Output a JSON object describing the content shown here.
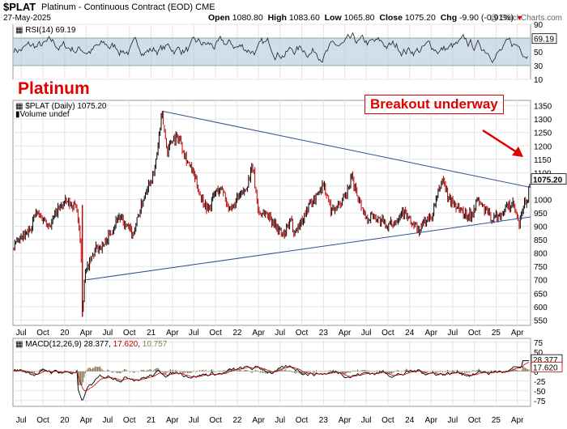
{
  "header": {
    "symbol": "$PLAT",
    "name": "Platinum - Continuous Contract (EOD)",
    "exchange": "CME",
    "date": "27-May-2025",
    "watermark": "@ StockCharts.com",
    "open_label": "Open",
    "open": "1080.80",
    "high_label": "High",
    "high": "1083.60",
    "low_label": "Low",
    "low": "1065.80",
    "close_label": "Close",
    "close": "1075.20",
    "chg_label": "Chg",
    "chg": "-9.90 (-0.91%)"
  },
  "annotations": {
    "title": "Platinum",
    "breakout": "Breakout underway"
  },
  "colors": {
    "accent": "#e00000",
    "trendline": "#2f4f8f",
    "rsi_band": "#a9c1d9",
    "price": "#000000",
    "macd_hist": "#8b7d5a"
  },
  "chart_data": [
    {
      "type": "line",
      "panel": "rsi",
      "label": "RSI(14)",
      "current": "69.19",
      "ylim": [
        10,
        90
      ],
      "ticks": [
        90,
        70,
        50,
        30,
        10
      ],
      "band": [
        30,
        70
      ]
    },
    {
      "type": "candlestick",
      "panel": "price",
      "label": "$PLAT (Daily)",
      "current": "1075.20",
      "volume_label": "Volume undef",
      "ylim": [
        530,
        1370
      ],
      "ticks": [
        1350,
        1300,
        1250,
        1200,
        1150,
        1100,
        1050,
        1000,
        950,
        900,
        850,
        800,
        750,
        700,
        650,
        600,
        550
      ],
      "x_labels": [
        "Jul",
        "Oct",
        "20",
        "Apr",
        "Jul",
        "Oct",
        "21",
        "Apr",
        "Jul",
        "Oct",
        "22",
        "Apr",
        "Jul",
        "Oct",
        "23",
        "Apr",
        "Jul",
        "Oct",
        "24",
        "Apr",
        "Jul",
        "Oct",
        "25",
        "Apr"
      ],
      "series": [
        {
          "x": [
            "2019-05-27",
            "2019-07-01",
            "2019-08-01",
            "2019-09-01",
            "2019-10-01",
            "2019-11-01",
            "2019-12-01",
            "2020-01-01",
            "2020-02-01",
            "2020-02-20",
            "2020-03-10",
            "2020-03-16",
            "2020-03-25",
            "2020-04-15",
            "2020-05-15",
            "2020-06-15",
            "2020-07-15",
            "2020-08-15",
            "2020-09-15",
            "2020-10-15",
            "2020-11-15",
            "2020-12-15",
            "2021-01-15",
            "2021-02-16",
            "2021-03-10",
            "2021-04-01",
            "2021-05-01",
            "2021-06-01",
            "2021-07-01",
            "2021-08-01",
            "2021-09-01",
            "2021-10-01",
            "2021-11-01",
            "2021-12-01",
            "2022-01-01",
            "2022-02-01",
            "2022-03-08",
            "2022-04-01",
            "2022-05-01",
            "2022-06-01",
            "2022-07-15",
            "2022-08-15",
            "2022-09-01",
            "2022-10-01",
            "2022-11-01",
            "2022-12-01",
            "2023-01-01",
            "2023-02-01",
            "2023-03-01",
            "2023-04-01",
            "2023-05-01",
            "2023-06-01",
            "2023-07-01",
            "2023-08-01",
            "2023-09-01",
            "2023-10-01",
            "2023-11-01",
            "2023-12-01",
            "2024-01-01",
            "2024-02-15",
            "2024-03-01",
            "2024-04-01",
            "2024-05-20",
            "2024-06-15",
            "2024-07-15",
            "2024-08-15",
            "2024-09-15",
            "2024-10-15",
            "2024-11-15",
            "2024-12-15",
            "2025-01-15",
            "2025-02-15",
            "2025-03-15",
            "2025-04-09",
            "2025-04-25",
            "2025-05-15",
            "2025-05-27"
          ],
          "y": [
            820,
            850,
            880,
            950,
            930,
            905,
            960,
            990,
            980,
            980,
            800,
            570,
            720,
            760,
            820,
            830,
            880,
            940,
            900,
            870,
            960,
            1050,
            1100,
            1320,
            1180,
            1230,
            1230,
            1150,
            1090,
            1010,
            960,
            1030,
            1040,
            950,
            1000,
            1030,
            1120,
            950,
            950,
            920,
            860,
            920,
            880,
            920,
            980,
            1010,
            1060,
            960,
            980,
            1000,
            1080,
            1000,
            930,
            940,
            920,
            900,
            920,
            960,
            920,
            880,
            920,
            930,
            1080,
            1000,
            980,
            950,
            940,
            1000,
            960,
            930,
            940,
            970,
            980,
            900,
            970,
            1010,
            1075.2
          ]
        }
      ],
      "upper_trendline": {
        "x": [
          "2021-02-16",
          "2025-05-27"
        ],
        "y": [
          1330,
          1045
        ]
      },
      "lower_trendline": {
        "x": [
          "2020-04-01",
          "2025-05-27"
        ],
        "y": [
          700,
          935
        ]
      }
    },
    {
      "type": "line",
      "panel": "macd",
      "label": "MACD(12,26,9)",
      "macd": "28.377",
      "signal": "17.620",
      "hist": "10.757",
      "ticks": [
        75,
        50,
        25,
        0,
        -25,
        -50,
        -75
      ],
      "ylim": [
        -90,
        85
      ]
    }
  ]
}
